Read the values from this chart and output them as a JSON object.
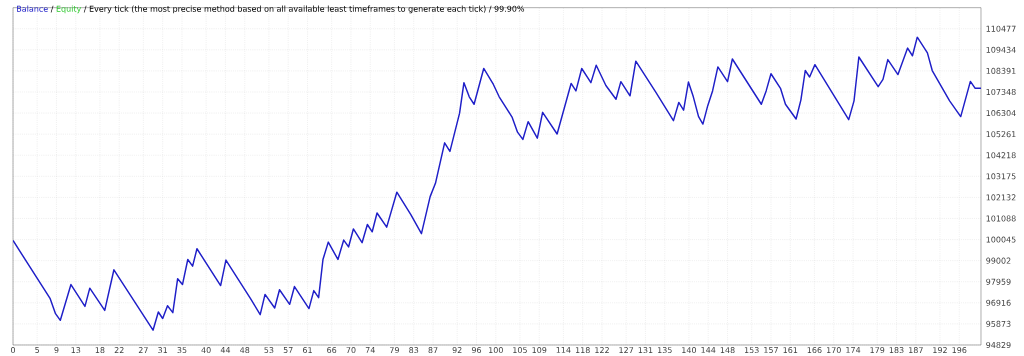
{
  "chart_data": {
    "type": "line",
    "title": "/ Every tick (the most precise method based on all available least timeframes to generate each tick) / 99.90%",
    "annotations": [
      "/",
      "Equity"
    ],
    "x": [
      0,
      7.7,
      8.8,
      9.8,
      12.0,
      14.9,
      15.9,
      19.0,
      20.9,
      29.0,
      30.1,
      31.0,
      32.0,
      33.1,
      34.1,
      35.1,
      36.2,
      37.2,
      38.1,
      43.0,
      44.1,
      49.2,
      51.2,
      52.2,
      54.2,
      55.2,
      57.3,
      58.3,
      61.3,
      62.3,
      63.3,
      64.2,
      65.3,
      67.3,
      68.5,
      69.5,
      70.5,
      72.3,
      73.4,
      74.4,
      75.4,
      77.4,
      79.5,
      82.4,
      84.6,
      86.4,
      87.5,
      89.4,
      90.5,
      92.5,
      93.4,
      94.5,
      95.5,
      97.5,
      99.5,
      100.7,
      103.4,
      104.5,
      105.6,
      106.7,
      108.6,
      109.7,
      112.7,
      115.6,
      116.6,
      117.8,
      119.7,
      120.8,
      122.8,
      124.9,
      125.9,
      127.8,
      129.0,
      133.1,
      136.8,
      137.9,
      138.9,
      139.9,
      140.9,
      142.0,
      142.9,
      143.9,
      144.9,
      146.0,
      148.0,
      149.0,
      155.0,
      156.0,
      157.0,
      159.0,
      160.0,
      162.2,
      163.2,
      164.1,
      165.0,
      166.1,
      173.1,
      174.2,
      175.2,
      179.2,
      180.2,
      181.2,
      183.3,
      185.3,
      186.3,
      187.3,
      189.4,
      190.4,
      194.0,
      196.3,
      198.3,
      199.3,
      200.5
    ],
    "series": [
      {
        "name": "Balance",
        "color": "#1f1fc8",
        "values": [
          100000,
          97120,
          96380,
          96050,
          97820,
          96740,
          97640,
          96540,
          98550,
          95560,
          96460,
          96140,
          96770,
          96430,
          98110,
          97820,
          99060,
          98730,
          99590,
          97770,
          99030,
          97120,
          96330,
          97330,
          96660,
          97560,
          96840,
          97720,
          96630,
          97520,
          97170,
          99060,
          99920,
          99060,
          100020,
          99680,
          100570,
          99890,
          100790,
          100430,
          101360,
          100660,
          102390,
          101280,
          100340,
          102170,
          102830,
          104830,
          104410,
          106300,
          107810,
          107110,
          106740,
          108510,
          107720,
          107110,
          106090,
          105360,
          105000,
          105880,
          105060,
          106340,
          105270,
          107770,
          107400,
          108510,
          107810,
          108670,
          107670,
          106990,
          107860,
          107160,
          108870,
          107350,
          105930,
          106830,
          106450,
          107840,
          107120,
          106130,
          105760,
          106670,
          107400,
          108590,
          107860,
          108980,
          106740,
          107400,
          108250,
          107510,
          106740,
          106010,
          106960,
          108410,
          108090,
          108700,
          105980,
          106910,
          109080,
          107610,
          107970,
          108950,
          108210,
          109520,
          109140,
          110060,
          109280,
          108410,
          106910,
          106130,
          107870,
          107530,
          107530
        ]
      }
    ],
    "xlim": [
      0,
      200.5
    ],
    "ylim": [
      94829,
      111520
    ],
    "xticks": [
      0,
      5,
      9,
      13,
      18,
      22,
      27,
      31,
      35,
      40,
      44,
      48,
      53,
      57,
      61,
      66,
      70,
      74,
      79,
      83,
      87,
      92,
      96,
      100,
      105,
      109,
      114,
      118,
      122,
      127,
      131,
      135,
      140,
      144,
      148,
      153,
      157,
      161,
      166,
      170,
      174,
      179,
      183,
      187,
      192,
      196
    ],
    "yticks": [
      94829,
      95873,
      96916,
      97959,
      99002,
      100045,
      101088,
      102132,
      103175,
      104218,
      105261,
      106304,
      107348,
      108391,
      109434,
      110477
    ],
    "grid": true,
    "legend": "top left",
    "marker": "none",
    "line_style": "solid"
  }
}
